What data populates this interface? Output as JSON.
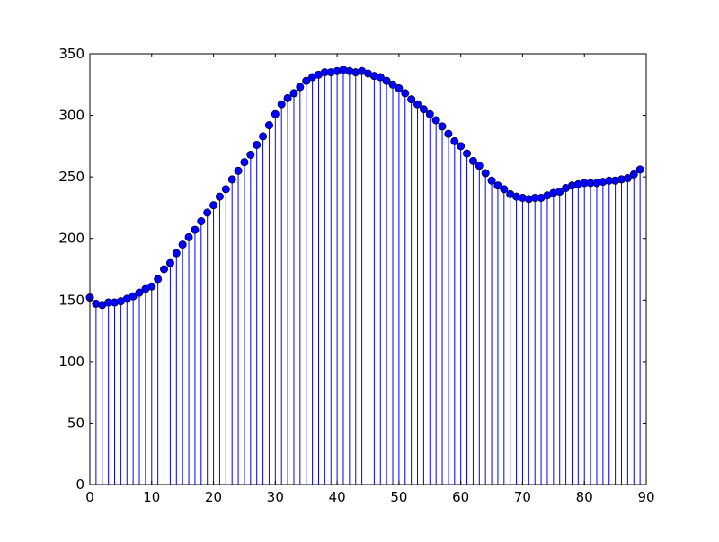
{
  "chart_data": {
    "type": "stem",
    "title": "",
    "xlabel": "",
    "ylabel": "",
    "xlim": [
      0,
      90
    ],
    "ylim": [
      0,
      350
    ],
    "grid": false,
    "legend": "none",
    "xticks": [
      "0",
      "10",
      "20",
      "30",
      "40",
      "50",
      "60",
      "70",
      "80",
      "90"
    ],
    "yticks": [
      "0",
      "50",
      "100",
      "150",
      "200",
      "250",
      "300",
      "350"
    ],
    "series": [
      {
        "name": "values",
        "color": "#0000ff",
        "marker_color": "#0000ff",
        "x": [
          0,
          1,
          2,
          3,
          4,
          5,
          6,
          7,
          8,
          9,
          10,
          11,
          12,
          13,
          14,
          15,
          16,
          17,
          18,
          19,
          20,
          21,
          22,
          23,
          24,
          25,
          26,
          27,
          28,
          29,
          30,
          31,
          32,
          33,
          34,
          35,
          36,
          37,
          38,
          39,
          40,
          41,
          42,
          43,
          44,
          45,
          46,
          47,
          48,
          49,
          50,
          51,
          52,
          53,
          54,
          55,
          56,
          57,
          58,
          59,
          60,
          61,
          62,
          63,
          64,
          65,
          66,
          67,
          68,
          69,
          70,
          71,
          72,
          73,
          74,
          75,
          76,
          77,
          78,
          79,
          80,
          81,
          82,
          83,
          84,
          85,
          86,
          87,
          88,
          89
        ],
        "values": [
          152,
          147,
          146,
          148,
          148,
          149,
          151,
          153,
          156,
          159,
          161,
          167,
          175,
          180,
          188,
          195,
          201,
          207,
          214,
          221,
          227,
          234,
          240,
          248,
          255,
          262,
          268,
          276,
          283,
          292,
          301,
          309,
          314,
          318,
          323,
          328,
          331,
          333,
          335,
          335,
          336,
          337,
          336,
          335,
          336,
          334,
          332,
          331,
          328,
          325,
          322,
          318,
          313,
          309,
          305,
          301,
          296,
          291,
          285,
          279,
          275,
          269,
          263,
          259,
          253,
          247,
          243,
          240,
          236,
          234,
          233,
          232,
          233,
          233,
          235,
          237,
          238,
          241,
          243,
          244,
          245,
          245,
          245,
          246,
          247,
          247,
          248,
          249,
          252,
          256
        ]
      }
    ]
  }
}
